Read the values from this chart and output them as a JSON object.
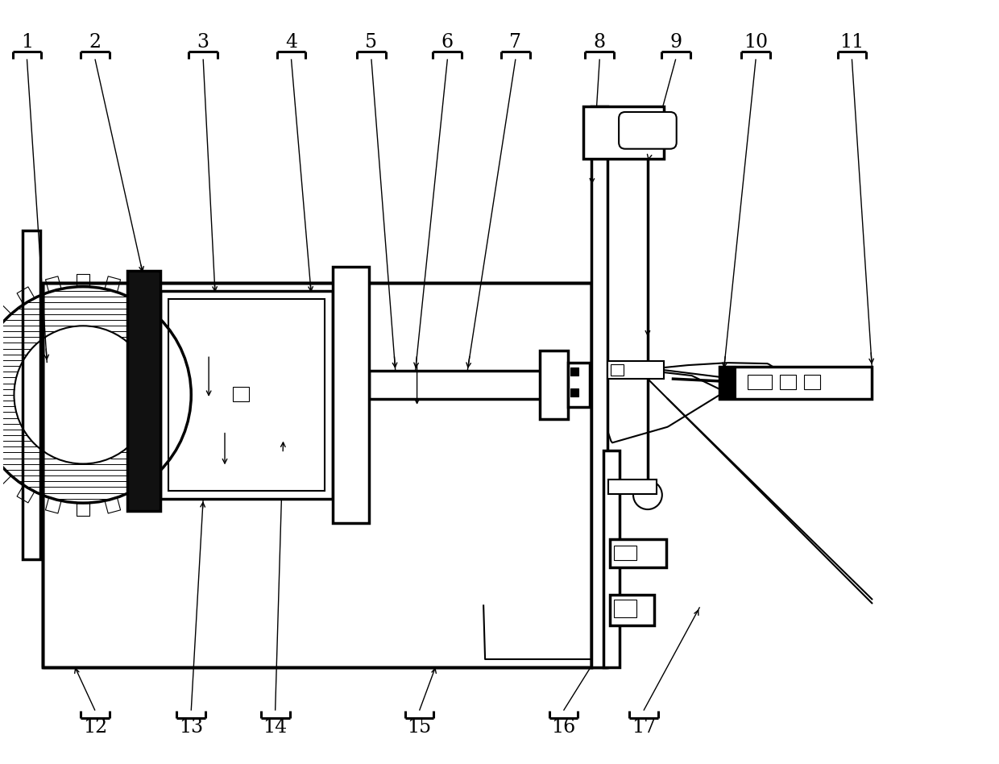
{
  "figsize": [
    12.4,
    9.48
  ],
  "dpi": 100,
  "bg_color": "#ffffff",
  "lc": "#000000",
  "lw": 1.5,
  "lw_thick": 2.5,
  "lw_thin": 0.8,
  "leader_fontsize": 17
}
